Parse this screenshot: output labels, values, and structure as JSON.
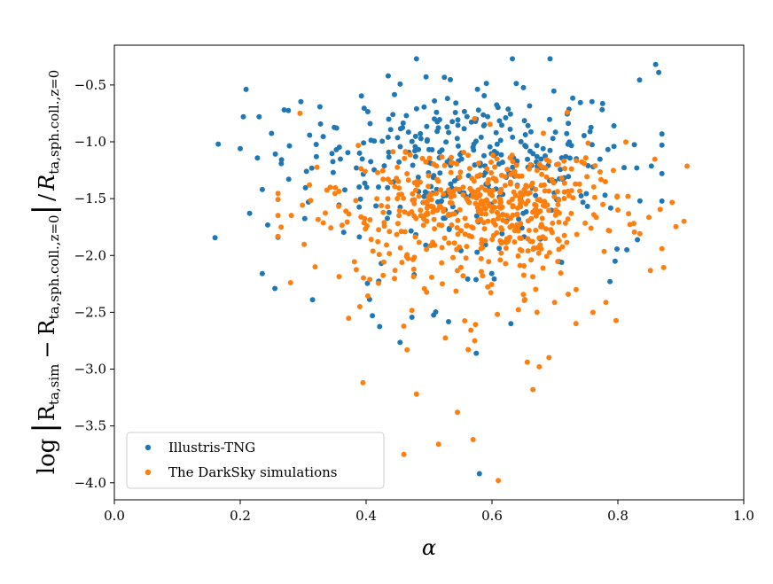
{
  "chart_data": {
    "type": "scatter",
    "xlabel": "α",
    "ylabel": "log |R_ta,sim − R_ta,sph.coll.,z=0| / R_ta,sph.coll.,z=0",
    "xlim": [
      0.0,
      1.0
    ],
    "ylim": [
      -4.15,
      -0.15
    ],
    "xticks": [
      "0.0",
      "0.2",
      "0.4",
      "0.6",
      "0.8",
      "1.0"
    ],
    "yticks": [
      "−0.5",
      "−1.0",
      "−1.5",
      "−2.0",
      "−2.5",
      "−3.0",
      "−3.5",
      "−4.0"
    ],
    "grid": false,
    "legend_position": "lower-left",
    "series": [
      {
        "name": "Illustris-TNG",
        "color": "#1f77b4",
        "x_range": [
          0.16,
          0.87
        ],
        "y_range": [
          -3.92,
          -0.27
        ],
        "approx_count": 360,
        "notable_points": [
          [
            0.165,
            -1.02
          ],
          [
            0.2,
            -1.06
          ],
          [
            0.205,
            -0.78
          ],
          [
            0.23,
            -0.78
          ],
          [
            0.235,
            -1.42
          ],
          [
            0.215,
            -1.63
          ],
          [
            0.235,
            -2.16
          ],
          [
            0.255,
            -2.29
          ],
          [
            0.26,
            -1.84
          ],
          [
            0.315,
            -2.39
          ],
          [
            0.48,
            -0.27
          ],
          [
            0.435,
            -0.42
          ],
          [
            0.86,
            -0.32
          ],
          [
            0.865,
            -0.39
          ],
          [
            0.83,
            -1.23
          ],
          [
            0.835,
            -1.52
          ],
          [
            0.575,
            -2.86
          ],
          [
            0.58,
            -3.92
          ],
          [
            0.63,
            -2.6
          ],
          [
            0.41,
            -2.53
          ]
        ]
      },
      {
        "name": "The DarkSky simulations",
        "color": "#ff7f0e",
        "x_range": [
          0.26,
          0.91
        ],
        "y_range": [
          -3.98,
          -0.74
        ],
        "approx_count": 560,
        "notable_points": [
          [
            0.265,
            -1.75
          ],
          [
            0.28,
            -2.24
          ],
          [
            0.295,
            -0.75
          ],
          [
            0.31,
            -1.38
          ],
          [
            0.39,
            -2.45
          ],
          [
            0.395,
            -3.12
          ],
          [
            0.465,
            -2.83
          ],
          [
            0.46,
            -3.75
          ],
          [
            0.48,
            -3.22
          ],
          [
            0.515,
            -3.66
          ],
          [
            0.545,
            -3.38
          ],
          [
            0.57,
            -3.62
          ],
          [
            0.61,
            -3.98
          ],
          [
            0.665,
            -3.18
          ],
          [
            0.675,
            -2.98
          ],
          [
            0.87,
            -1.94
          ],
          [
            0.905,
            -1.7
          ],
          [
            0.785,
            -1.78
          ],
          [
            0.8,
            -1.6
          ]
        ]
      }
    ]
  }
}
